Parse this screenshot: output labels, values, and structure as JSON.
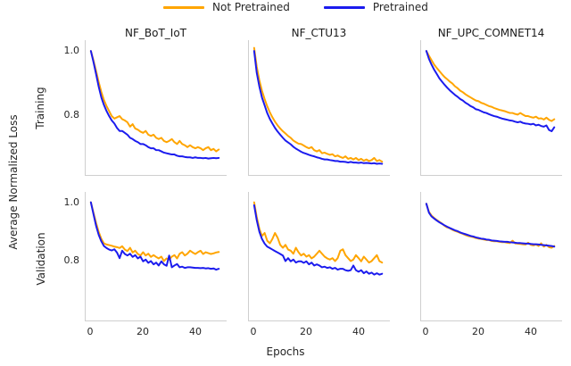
{
  "figure": {
    "legend": [
      {
        "label": "Not Pretrained",
        "color": "#FFA500"
      },
      {
        "label": "Pretrained",
        "color": "#1B1BEE"
      }
    ],
    "ylabel": "Average Normalized Loss",
    "xlabel": "Epochs",
    "row_labels": [
      "Training",
      "Validation"
    ],
    "col_titles": [
      "NF_BoT_IoT",
      "NF_CTU13",
      "NF_UPC_COMNET14"
    ],
    "yticks": [
      "1.0",
      "0.8"
    ],
    "xticks": [
      "0",
      "20",
      "40"
    ]
  },
  "chart_data": {
    "type": "line",
    "title": "",
    "xlabel": "Epochs",
    "ylabel": "Average Normalized Loss",
    "xlim": [
      -2,
      52
    ],
    "ylim": [
      0.6,
      1.035
    ],
    "xticks": [
      0,
      20,
      40
    ],
    "yticks": [
      1.0,
      0.8
    ],
    "grid": false,
    "legend_position": "top-center",
    "x": "epochs 0..49 (index of each value)",
    "colors": {
      "not_pretrained": "#FFA500",
      "pretrained": "#1B1BEE"
    },
    "series_order": [
      "not_pretrained",
      "pretrained"
    ],
    "panels": [
      {
        "row": "Training",
        "col": "NF_BoT_IoT",
        "not_pretrained": [
          1.0,
          0.97,
          0.935,
          0.9,
          0.868,
          0.842,
          0.822,
          0.806,
          0.79,
          0.782,
          0.786,
          0.79,
          0.78,
          0.776,
          0.77,
          0.756,
          0.764,
          0.75,
          0.746,
          0.74,
          0.736,
          0.742,
          0.73,
          0.726,
          0.73,
          0.72,
          0.716,
          0.72,
          0.71,
          0.706,
          0.71,
          0.716,
          0.706,
          0.7,
          0.71,
          0.7,
          0.696,
          0.69,
          0.696,
          0.69,
          0.686,
          0.69,
          0.686,
          0.68,
          0.686,
          0.69,
          0.68,
          0.684,
          0.676,
          0.682
        ],
        "pretrained": [
          1.0,
          0.965,
          0.925,
          0.885,
          0.85,
          0.826,
          0.806,
          0.79,
          0.776,
          0.766,
          0.752,
          0.742,
          0.742,
          0.736,
          0.73,
          0.72,
          0.716,
          0.71,
          0.706,
          0.7,
          0.7,
          0.696,
          0.69,
          0.686,
          0.686,
          0.68,
          0.68,
          0.676,
          0.672,
          0.67,
          0.668,
          0.666,
          0.666,
          0.662,
          0.66,
          0.66,
          0.658,
          0.657,
          0.657,
          0.655,
          0.657,
          0.655,
          0.655,
          0.654,
          0.655,
          0.653,
          0.654,
          0.655,
          0.654,
          0.655
        ]
      },
      {
        "row": "Training",
        "col": "NF_CTU13",
        "not_pretrained": [
          1.01,
          0.95,
          0.905,
          0.872,
          0.845,
          0.822,
          0.802,
          0.786,
          0.772,
          0.76,
          0.75,
          0.741,
          0.734,
          0.726,
          0.72,
          0.711,
          0.706,
          0.701,
          0.7,
          0.695,
          0.69,
          0.686,
          0.69,
          0.68,
          0.676,
          0.68,
          0.67,
          0.672,
          0.668,
          0.665,
          0.667,
          0.66,
          0.663,
          0.658,
          0.655,
          0.66,
          0.652,
          0.655,
          0.65,
          0.655,
          0.648,
          0.652,
          0.646,
          0.65,
          0.645,
          0.648,
          0.655,
          0.645,
          0.648,
          0.643
        ],
        "pretrained": [
          1.0,
          0.93,
          0.885,
          0.85,
          0.825,
          0.8,
          0.781,
          0.766,
          0.752,
          0.74,
          0.73,
          0.72,
          0.711,
          0.705,
          0.699,
          0.691,
          0.685,
          0.68,
          0.675,
          0.671,
          0.668,
          0.665,
          0.662,
          0.66,
          0.657,
          0.655,
          0.652,
          0.65,
          0.65,
          0.648,
          0.647,
          0.645,
          0.645,
          0.643,
          0.643,
          0.642,
          0.64,
          0.642,
          0.64,
          0.64,
          0.639,
          0.64,
          0.638,
          0.639,
          0.638,
          0.637,
          0.638,
          0.636,
          0.637,
          0.636
        ]
      },
      {
        "row": "Training",
        "col": "NF_UPC_COMNET14",
        "not_pretrained": [
          1.0,
          0.985,
          0.97,
          0.956,
          0.945,
          0.935,
          0.925,
          0.916,
          0.909,
          0.901,
          0.895,
          0.886,
          0.88,
          0.872,
          0.867,
          0.86,
          0.855,
          0.85,
          0.845,
          0.84,
          0.838,
          0.833,
          0.83,
          0.826,
          0.822,
          0.82,
          0.816,
          0.813,
          0.81,
          0.808,
          0.806,
          0.803,
          0.8,
          0.8,
          0.797,
          0.795,
          0.8,
          0.795,
          0.79,
          0.79,
          0.787,
          0.785,
          0.788,
          0.782,
          0.783,
          0.779,
          0.785,
          0.778,
          0.774,
          0.78
        ],
        "pretrained": [
          1.0,
          0.975,
          0.956,
          0.94,
          0.926,
          0.912,
          0.901,
          0.891,
          0.882,
          0.873,
          0.866,
          0.858,
          0.852,
          0.845,
          0.84,
          0.833,
          0.828,
          0.822,
          0.818,
          0.812,
          0.81,
          0.806,
          0.802,
          0.8,
          0.796,
          0.793,
          0.79,
          0.788,
          0.785,
          0.782,
          0.78,
          0.778,
          0.776,
          0.775,
          0.772,
          0.77,
          0.772,
          0.768,
          0.766,
          0.765,
          0.763,
          0.765,
          0.76,
          0.762,
          0.758,
          0.756,
          0.76,
          0.745,
          0.741,
          0.754
        ]
      },
      {
        "row": "Validation",
        "col": "NF_BoT_IoT",
        "not_pretrained": [
          1.0,
          0.965,
          0.93,
          0.9,
          0.876,
          0.861,
          0.857,
          0.855,
          0.853,
          0.85,
          0.848,
          0.845,
          0.851,
          0.84,
          0.835,
          0.846,
          0.83,
          0.836,
          0.825,
          0.82,
          0.831,
          0.82,
          0.826,
          0.815,
          0.821,
          0.815,
          0.81,
          0.816,
          0.801,
          0.81,
          0.806,
          0.816,
          0.821,
          0.81,
          0.826,
          0.831,
          0.82,
          0.826,
          0.836,
          0.83,
          0.825,
          0.831,
          0.836,
          0.825,
          0.831,
          0.828,
          0.825,
          0.827,
          0.83,
          0.832
        ],
        "pretrained": [
          1.0,
          0.96,
          0.92,
          0.89,
          0.868,
          0.852,
          0.845,
          0.84,
          0.837,
          0.841,
          0.83,
          0.811,
          0.836,
          0.825,
          0.82,
          0.826,
          0.815,
          0.821,
          0.81,
          0.816,
          0.8,
          0.806,
          0.795,
          0.801,
          0.79,
          0.796,
          0.786,
          0.8,
          0.79,
          0.785,
          0.82,
          0.78,
          0.786,
          0.791,
          0.78,
          0.782,
          0.778,
          0.78,
          0.78,
          0.779,
          0.778,
          0.778,
          0.777,
          0.778,
          0.776,
          0.777,
          0.775,
          0.776,
          0.772,
          0.775
        ]
      },
      {
        "row": "Validation",
        "col": "NF_CTU13",
        "not_pretrained": [
          1.0,
          0.95,
          0.91,
          0.886,
          0.896,
          0.87,
          0.861,
          0.876,
          0.896,
          0.88,
          0.856,
          0.846,
          0.856,
          0.84,
          0.836,
          0.826,
          0.846,
          0.831,
          0.82,
          0.826,
          0.816,
          0.821,
          0.81,
          0.816,
          0.826,
          0.836,
          0.826,
          0.816,
          0.81,
          0.806,
          0.811,
          0.801,
          0.811,
          0.836,
          0.841,
          0.821,
          0.811,
          0.801,
          0.806,
          0.821,
          0.811,
          0.8,
          0.816,
          0.806,
          0.796,
          0.801,
          0.811,
          0.821,
          0.801,
          0.796
        ],
        "pretrained": [
          0.99,
          0.94,
          0.9,
          0.876,
          0.86,
          0.85,
          0.845,
          0.84,
          0.835,
          0.83,
          0.825,
          0.82,
          0.801,
          0.811,
          0.8,
          0.806,
          0.796,
          0.8,
          0.8,
          0.795,
          0.8,
          0.79,
          0.796,
          0.786,
          0.79,
          0.786,
          0.78,
          0.782,
          0.778,
          0.78,
          0.775,
          0.778,
          0.772,
          0.775,
          0.775,
          0.77,
          0.768,
          0.77,
          0.786,
          0.77,
          0.765,
          0.77,
          0.76,
          0.766,
          0.758,
          0.762,
          0.755,
          0.76,
          0.755,
          0.758
        ]
      },
      {
        "row": "Validation",
        "col": "NF_UPC_COMNET14",
        "not_pretrained": [
          0.995,
          0.968,
          0.955,
          0.947,
          0.94,
          0.934,
          0.928,
          0.92,
          0.915,
          0.912,
          0.907,
          0.903,
          0.9,
          0.896,
          0.893,
          0.889,
          0.886,
          0.884,
          0.882,
          0.879,
          0.877,
          0.876,
          0.874,
          0.872,
          0.872,
          0.869,
          0.868,
          0.868,
          0.866,
          0.865,
          0.865,
          0.863,
          0.862,
          0.87,
          0.861,
          0.86,
          0.859,
          0.858,
          0.857,
          0.863,
          0.856,
          0.854,
          0.857,
          0.852,
          0.861,
          0.85,
          0.856,
          0.848,
          0.846,
          0.852
        ],
        "pretrained": [
          0.995,
          0.965,
          0.952,
          0.945,
          0.938,
          0.932,
          0.927,
          0.922,
          0.917,
          0.913,
          0.909,
          0.905,
          0.902,
          0.898,
          0.895,
          0.892,
          0.889,
          0.886,
          0.884,
          0.881,
          0.879,
          0.877,
          0.876,
          0.874,
          0.873,
          0.871,
          0.87,
          0.869,
          0.868,
          0.867,
          0.866,
          0.866,
          0.865,
          0.864,
          0.863,
          0.862,
          0.862,
          0.861,
          0.86,
          0.86,
          0.859,
          0.858,
          0.858,
          0.857,
          0.856,
          0.855,
          0.854,
          0.853,
          0.852,
          0.85
        ]
      }
    ]
  }
}
